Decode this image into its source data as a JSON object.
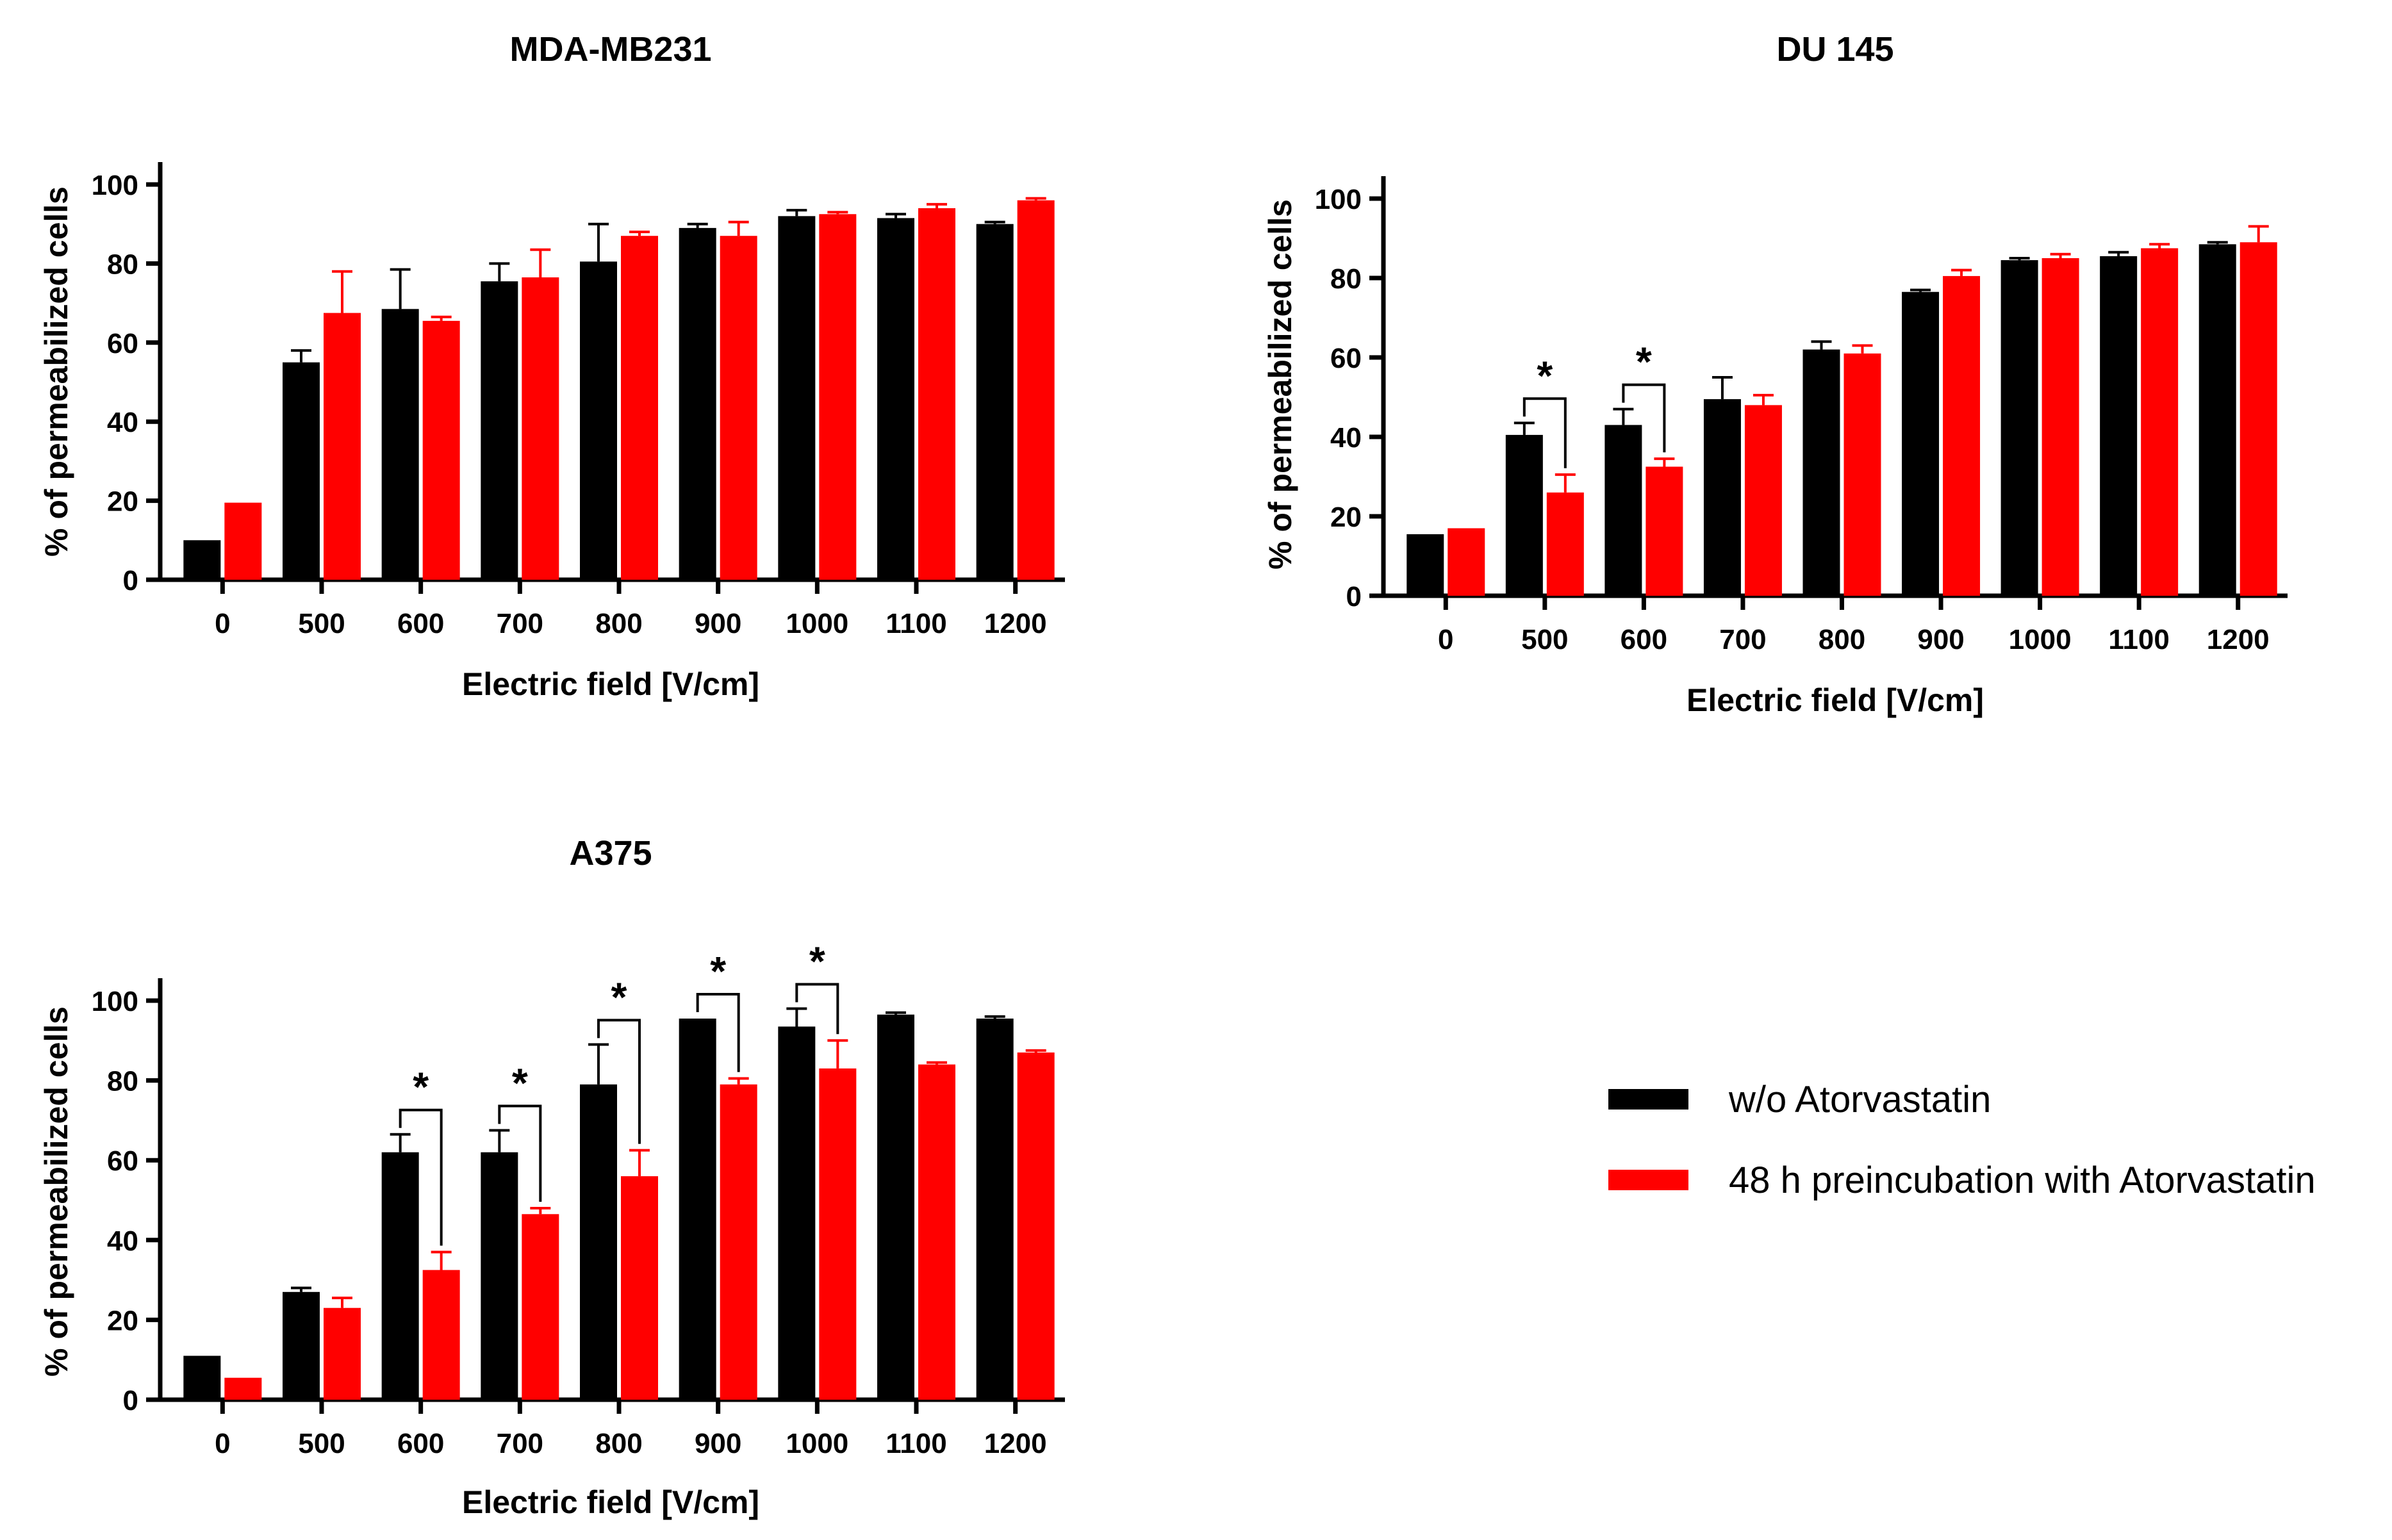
{
  "colors": {
    "series1": "#000000",
    "series2": "#ff0000"
  },
  "legend": {
    "entries": [
      {
        "label": "w/o Atorvastatin",
        "color": "#000000"
      },
      {
        "label": "48 h preincubation with  Atorvastatin",
        "color": "#ff0000"
      }
    ]
  },
  "chart_data": [
    {
      "type": "bar",
      "title": "MDA-MB231",
      "xlabel": "Electric field [V/cm]",
      "ylabel": "% of permeabilized cells",
      "ylim": [
        0,
        100
      ],
      "yticks": [
        0,
        20,
        40,
        60,
        80,
        100
      ],
      "categories": [
        "0",
        "500",
        "600",
        "700",
        "800",
        "900",
        "1000",
        "1100",
        "1200"
      ],
      "series": [
        {
          "name": "w/o Atorvastatin",
          "values": [
            10,
            55,
            68.5,
            75.5,
            80.5,
            89,
            92,
            91.5,
            90
          ],
          "errors": [
            0,
            3,
            10,
            4.5,
            9.5,
            1,
            1.5,
            1,
            0.5
          ]
        },
        {
          "name": "48 h preincubation with  Atorvastatin",
          "values": [
            19.5,
            67.5,
            65.5,
            76.5,
            87,
            87,
            92.5,
            94,
            96
          ],
          "errors": [
            0,
            10.5,
            1,
            7,
            1,
            3.5,
            0.5,
            1,
            0.5
          ]
        }
      ],
      "significance": []
    },
    {
      "type": "bar",
      "title": "DU 145",
      "xlabel": "Electric field [V/cm]",
      "ylabel": "% of permeabilized cells",
      "ylim": [
        0,
        100
      ],
      "yticks": [
        0,
        20,
        40,
        60,
        80,
        100
      ],
      "categories": [
        "0",
        "500",
        "600",
        "700",
        "800",
        "900",
        "1000",
        "1100",
        "1200"
      ],
      "series": [
        {
          "name": "w/o Atorvastatin",
          "values": [
            15.5,
            40.5,
            43,
            49.5,
            62,
            76.5,
            84.5,
            85.5,
            88.5
          ],
          "errors": [
            0,
            3,
            4,
            5.5,
            2,
            0.5,
            0.5,
            1,
            0.5
          ]
        },
        {
          "name": "48 h preincubation with  Atorvastatin",
          "values": [
            17,
            26,
            32.5,
            48,
            61,
            80.5,
            85,
            87.5,
            89
          ],
          "errors": [
            0,
            4.5,
            2,
            2.5,
            2,
            1.5,
            1,
            1,
            4
          ]
        }
      ],
      "significance": [
        {
          "category": "500",
          "label": "*"
        },
        {
          "category": "600",
          "label": "*"
        }
      ]
    },
    {
      "type": "bar",
      "title": "A375",
      "xlabel": "Electric field [V/cm]",
      "ylabel": "% of permeabilized cells",
      "ylim": [
        0,
        100
      ],
      "yticks": [
        0,
        20,
        40,
        60,
        80,
        100
      ],
      "categories": [
        "0",
        "500",
        "600",
        "700",
        "800",
        "900",
        "1000",
        "1100",
        "1200"
      ],
      "series": [
        {
          "name": "w/o Atorvastatin",
          "values": [
            11,
            27,
            62,
            62,
            79,
            95.5,
            93.5,
            96.5,
            95.5
          ],
          "errors": [
            0,
            1,
            4.5,
            5.5,
            10,
            0,
            4.5,
            0.5,
            0.5
          ]
        },
        {
          "name": "48 h preincubation with  Atorvastatin",
          "values": [
            5.5,
            23,
            32.5,
            46.5,
            56,
            79,
            83,
            84,
            87
          ],
          "errors": [
            0,
            2.5,
            4.5,
            1.5,
            6.5,
            1.5,
            7,
            0.5,
            0.5
          ]
        }
      ],
      "significance": [
        {
          "category": "600",
          "label": "*"
        },
        {
          "category": "700",
          "label": "*"
        },
        {
          "category": "800",
          "label": "*"
        },
        {
          "category": "900",
          "label": "*"
        },
        {
          "category": "1000",
          "label": "*"
        }
      ]
    }
  ]
}
